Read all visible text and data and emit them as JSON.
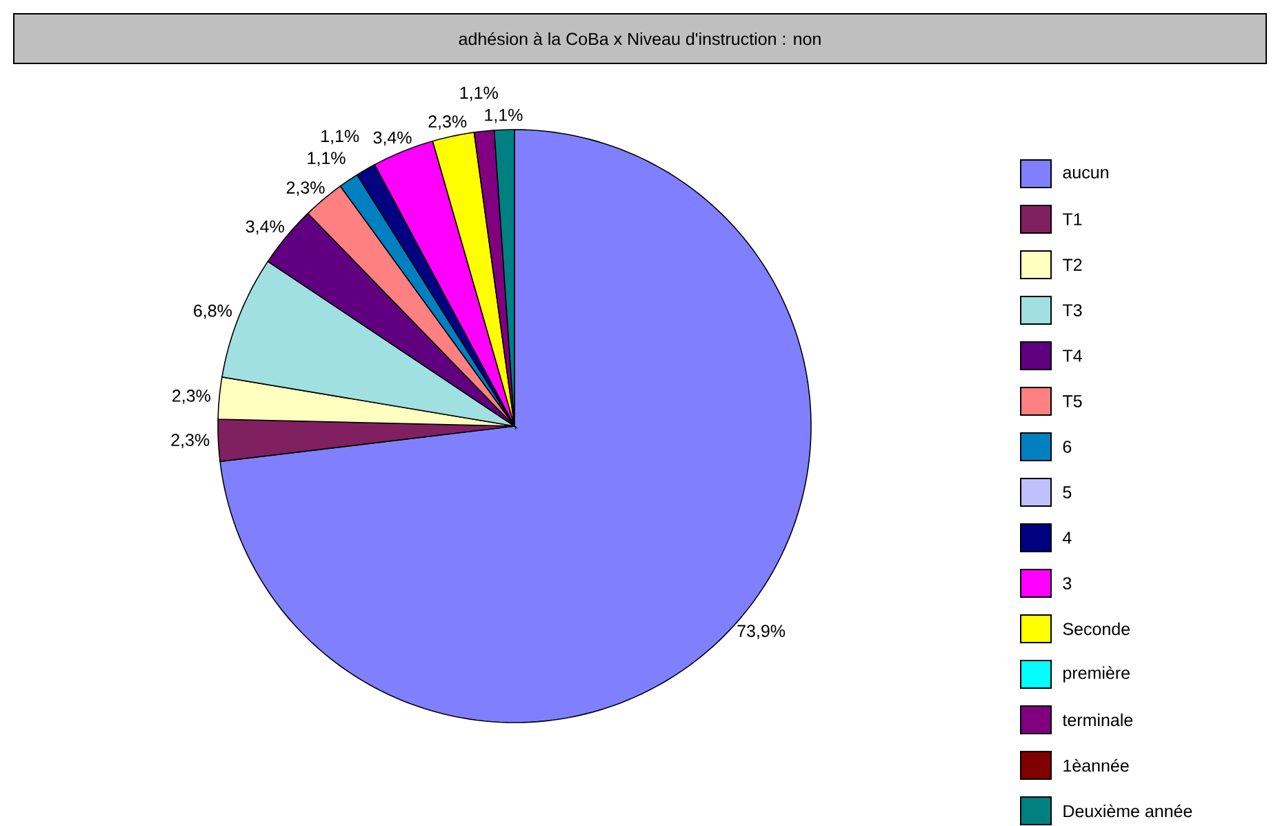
{
  "chart_data": {
    "type": "pie",
    "title": "adhésion à la CoBa x Niveau d'instruction : non",
    "categories": [
      "aucun",
      "T1",
      "T2",
      "T3",
      "T4",
      "T5",
      "6",
      "5",
      "4",
      "3",
      "Seconde",
      "première",
      "terminale",
      "1èannée",
      "Deuxième année"
    ],
    "values": [
      73.9,
      2.3,
      2.3,
      6.8,
      3.4,
      2.3,
      1.1,
      0,
      1.1,
      3.4,
      2.3,
      0,
      1.1,
      0,
      1.1
    ],
    "value_labels": [
      "73,9%",
      "2,3%",
      "2,3%",
      "6,8%",
      "3,4%",
      "2,3%",
      "1,1%",
      null,
      "1,1%",
      "3,4%",
      "2,3%",
      null,
      "1,1%",
      null,
      "1,1%"
    ],
    "colors": [
      "#8080ff",
      "#802060",
      "#ffffc0",
      "#a0e0e0",
      "#600080",
      "#ff8080",
      "#0080c0",
      "#c0c0ff",
      "#000080",
      "#ff00ff",
      "#ffff00",
      "#00ffff",
      "#800080",
      "#800000",
      "#008080"
    ],
    "legend": "right"
  }
}
